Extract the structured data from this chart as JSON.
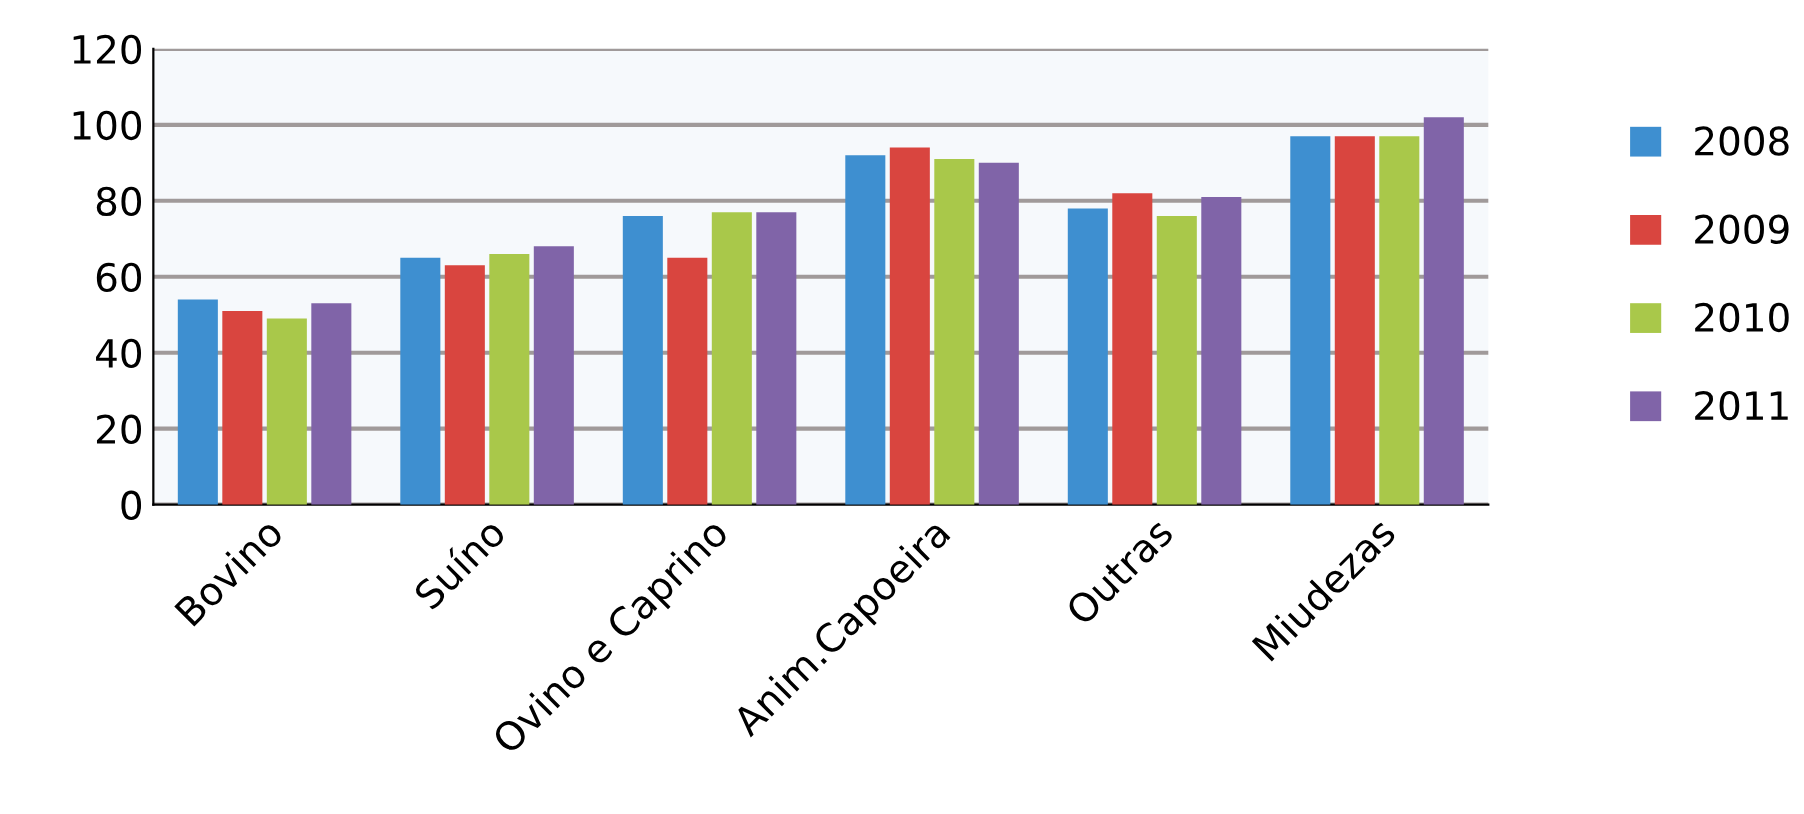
{
  "chart_data": {
    "type": "bar",
    "categories": [
      "Bovino",
      "Suíno",
      "Ovino e Caprino",
      "Anim.Capoeira",
      "Outras",
      "Miudezas"
    ],
    "series": [
      {
        "name": "2008",
        "color": "#3e8fd0",
        "values": [
          54,
          65,
          76,
          92,
          78,
          97
        ]
      },
      {
        "name": "2009",
        "color": "#d9453f",
        "values": [
          51,
          63,
          65,
          94,
          82,
          97
        ]
      },
      {
        "name": "2010",
        "color": "#a9c84a",
        "values": [
          49,
          66,
          77,
          91,
          76,
          97
        ]
      },
      {
        "name": "2011",
        "color": "#8064a8",
        "values": [
          53,
          68,
          77,
          90,
          81,
          102
        ]
      }
    ],
    "ylim": [
      0,
      120
    ],
    "yticks": [
      0,
      20,
      40,
      60,
      80,
      100,
      120
    ],
    "grid": "y",
    "legend": "right"
  }
}
